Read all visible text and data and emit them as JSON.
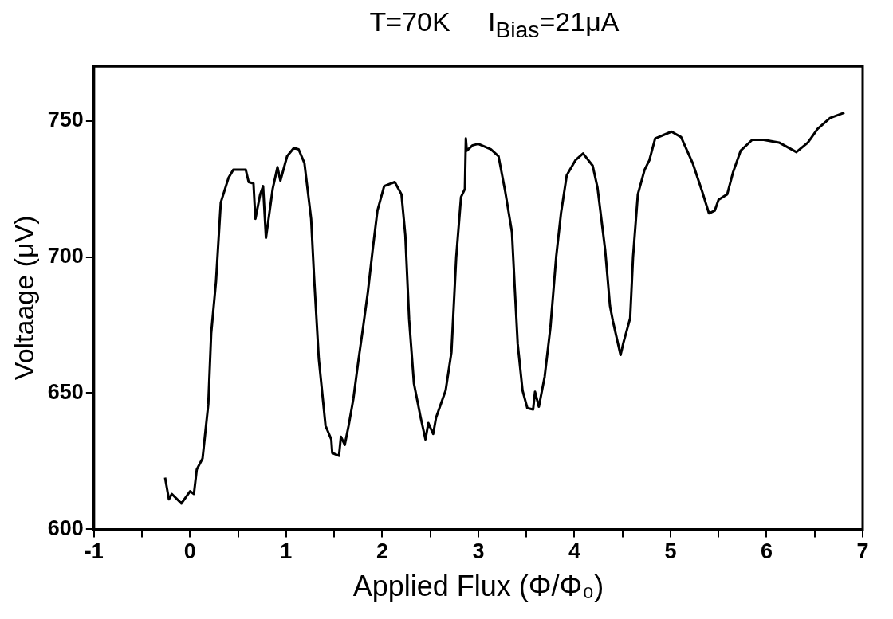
{
  "chart_data": {
    "type": "line",
    "title": "T=70K     I$_{Bias}$=21μA",
    "xlabel": "Applied Flux (Φ/Φ₀)",
    "ylabel": "Voltaage (μV)",
    "xlim": [
      -1,
      7
    ],
    "ylim": [
      600,
      770
    ],
    "xticks": [
      -1,
      {
        "value": -0.5,
        "label": null
      },
      0,
      {
        "value": 0.5,
        "label": null
      },
      1,
      {
        "value": 1.5,
        "label": null
      },
      2,
      {
        "value": 2.5,
        "label": null
      },
      3,
      {
        "value": 3.5,
        "label": null
      },
      4,
      {
        "value": 4.5,
        "label": null
      },
      5,
      {
        "value": 5.5,
        "label": null
      },
      6,
      {
        "value": 6.5,
        "label": null
      },
      7
    ],
    "yticks": [
      600,
      650,
      700,
      750
    ],
    "grid": false,
    "legend": false,
    "marker": "none",
    "line_style": "solid",
    "series": [
      {
        "color": "#000000",
        "x": [
          -0.26,
          -0.22,
          -0.19,
          -0.09,
          0.0,
          0.04,
          0.07,
          0.13,
          0.19,
          0.22,
          0.27,
          0.32,
          0.4,
          0.45,
          0.58,
          0.61,
          0.66,
          0.68,
          0.73,
          0.76,
          0.79,
          0.86,
          0.91,
          0.94,
          1.01,
          1.08,
          1.13,
          1.19,
          1.26,
          1.29,
          1.34,
          1.41,
          1.47,
          1.48,
          1.55,
          1.57,
          1.61,
          1.65,
          1.7,
          1.75,
          1.8,
          1.85,
          1.9,
          1.95,
          2.02,
          2.13,
          2.2,
          2.24,
          2.28,
          2.33,
          2.4,
          2.45,
          2.48,
          2.53,
          2.56,
          2.66,
          2.72,
          2.77,
          2.82,
          2.86,
          2.87,
          2.88,
          2.94,
          3.0,
          3.13,
          3.21,
          3.28,
          3.35,
          3.38,
          3.41,
          3.46,
          3.51,
          3.57,
          3.59,
          3.63,
          3.69,
          3.75,
          3.81,
          3.86,
          3.92,
          4.01,
          4.09,
          4.19,
          4.24,
          4.32,
          4.37,
          4.4,
          4.48,
          4.51,
          4.58,
          4.61,
          4.66,
          4.73,
          4.78,
          4.84,
          5.01,
          5.11,
          5.23,
          5.33,
          5.4,
          5.46,
          5.5,
          5.59,
          5.65,
          5.73,
          5.85,
          5.97,
          6.13,
          6.31,
          6.43,
          6.53,
          6.66,
          6.81
        ],
        "values": [
          619,
          611,
          613,
          609.5,
          614,
          613,
          622,
          626,
          646,
          672,
          691,
          720,
          729,
          732,
          732,
          727.5,
          727,
          714,
          723,
          726,
          707,
          725,
          733,
          728,
          737,
          740,
          739.5,
          734.5,
          714,
          693,
          662.5,
          638,
          633,
          628,
          627,
          634,
          631,
          638,
          648,
          661.5,
          674,
          687,
          702.5,
          717,
          726,
          727.5,
          723,
          708,
          677,
          653.5,
          641,
          633,
          639,
          635,
          641,
          651,
          665,
          700,
          722,
          725,
          743.5,
          739,
          741,
          741.5,
          739.5,
          737,
          724,
          709,
          688,
          668,
          651,
          644.5,
          644,
          650.5,
          645,
          656,
          674,
          700,
          716,
          730,
          735.5,
          738,
          733.5,
          725.5,
          702.5,
          682,
          676.5,
          664,
          668.5,
          677.5,
          700,
          723,
          732,
          735.5,
          743.5,
          746,
          744,
          734.5,
          724,
          716,
          717,
          721,
          723,
          731,
          739,
          743,
          743,
          742,
          738.5,
          742,
          747,
          751,
          753
        ]
      }
    ]
  }
}
